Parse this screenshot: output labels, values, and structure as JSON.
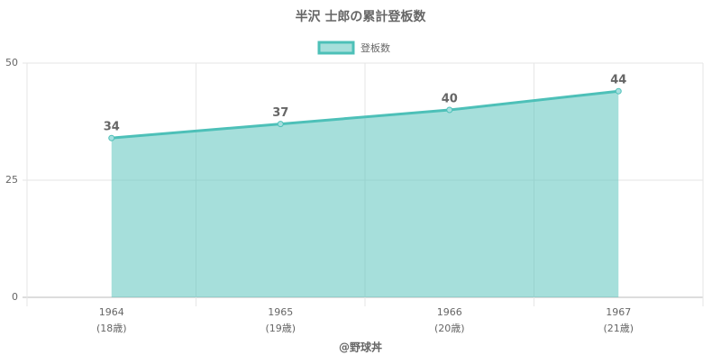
{
  "chart_data": {
    "type": "area",
    "title": "半沢 士郎の累計登板数",
    "categories": [
      "1964",
      "1965",
      "1966",
      "1967"
    ],
    "category_sublabels": [
      "(18歳)",
      "(19歳)",
      "(20歳)",
      "(21歳)"
    ],
    "x_label": "@野球丼",
    "series": [
      {
        "name": "登板数",
        "color": "#4dc0b8",
        "values": [
          34,
          37,
          40,
          44
        ]
      }
    ],
    "ylim": [
      0,
      50
    ],
    "yticks": [
      0,
      25,
      50
    ],
    "grid": true
  }
}
